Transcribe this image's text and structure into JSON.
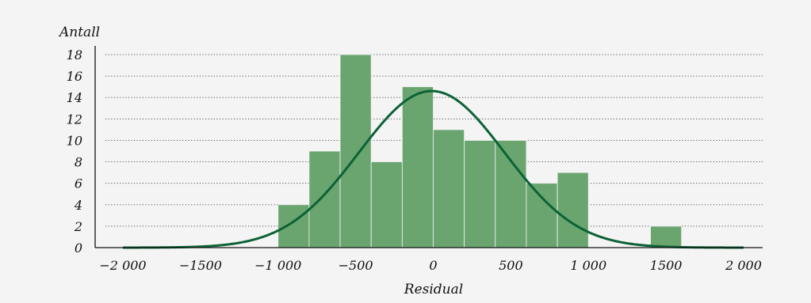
{
  "chart_data": {
    "type": "bar",
    "title": "",
    "ylabel": "Antall",
    "xlabel": "Residual",
    "bins": [
      {
        "x0": -1000,
        "x1": -800,
        "count": 4
      },
      {
        "x0": -800,
        "x1": -600,
        "count": 9
      },
      {
        "x0": -600,
        "x1": -400,
        "count": 18
      },
      {
        "x0": -400,
        "x1": -200,
        "count": 8
      },
      {
        "x0": -200,
        "x1": 0,
        "count": 15
      },
      {
        "x0": 0,
        "x1": 200,
        "count": 11
      },
      {
        "x0": 200,
        "x1": 400,
        "count": 10
      },
      {
        "x0": 400,
        "x1": 600,
        "count": 10
      },
      {
        "x0": 600,
        "x1": 800,
        "count": 6
      },
      {
        "x0": 800,
        "x1": 1000,
        "count": 7
      },
      {
        "x0": 1400,
        "x1": 1600,
        "count": 2
      }
    ],
    "normal_curve": {
      "mean": -10,
      "sd": 470,
      "peak": 14.6
    },
    "xlim": [
      -2100,
      2100
    ],
    "ylim": [
      0,
      18
    ],
    "xticks": [
      -2000,
      -1500,
      -1000,
      -500,
      0,
      500,
      1000,
      1500,
      2000
    ],
    "xtick_labels": [
      "−2 000",
      "−1500",
      "−1 000",
      "−500",
      "0",
      "500",
      "1 000",
      "1500",
      "2 000"
    ],
    "yticks": [
      0,
      2,
      4,
      6,
      8,
      10,
      12,
      14,
      16,
      18
    ],
    "ytick_labels": [
      "0",
      "2",
      "4",
      "6",
      "8",
      "10",
      "12",
      "14",
      "16",
      "18"
    ],
    "grid": "horizontal dotted",
    "colors": {
      "bar": "#6aa56f",
      "curve": "#0c6236",
      "axis": "#111111",
      "grid": "#555555"
    }
  }
}
